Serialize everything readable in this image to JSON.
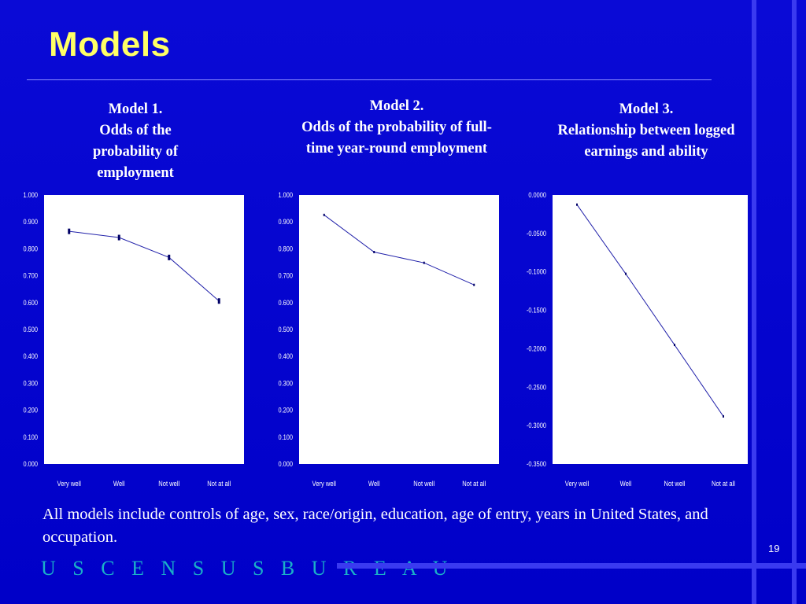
{
  "slide": {
    "title": "Models",
    "note": "All models include controls of age, sex, race/origin, education, age of entry, years in United States, and occupation.",
    "page_number": "19",
    "footer_brand": "U S C E N S U S B U R E A U"
  },
  "colors": {
    "background": "#0000cc",
    "title": "#ffff66",
    "plot_background": "#ffffff",
    "series_line": "#2222aa",
    "brand": "#1ab0c8"
  },
  "captions": [
    "Model 1.\nOdds of the probability of employment",
    "Model 2.\nOdds of the probability of full-time year-round employment",
    "Model 3.\nRelationship between logged earnings and ability"
  ],
  "chart_data": [
    {
      "type": "line",
      "title": "Model 1. Odds of the probability of employment",
      "categories": [
        "Very well",
        "Well",
        "Not well",
        "Not at all"
      ],
      "series": [
        {
          "values": [
            0.865,
            0.842,
            0.768,
            0.606
          ]
        }
      ],
      "ylim": [
        0,
        1
      ],
      "yticks": [
        0,
        0.1,
        0.2,
        0.3,
        0.4,
        0.5,
        0.6,
        0.7,
        0.8,
        0.9,
        1.0
      ],
      "ytick_labels": [
        "0.000",
        "0.100",
        "0.200",
        "0.300",
        "0.400",
        "0.500",
        "0.600",
        "0.700",
        "0.800",
        "0.900",
        "1.000"
      ],
      "xlabel": "",
      "ylabel": "",
      "grid": false,
      "legend": false
    },
    {
      "type": "line",
      "title": "Model 2. Odds of the probability of full-time year-round employment",
      "categories": [
        "Very well",
        "Well",
        "Not well",
        "Not at all"
      ],
      "series": [
        {
          "values": [
            0.926,
            0.788,
            0.748,
            0.666
          ]
        }
      ],
      "ylim": [
        0,
        1
      ],
      "yticks": [
        0,
        0.1,
        0.2,
        0.3,
        0.4,
        0.5,
        0.6,
        0.7,
        0.8,
        0.9,
        1.0
      ],
      "ytick_labels": [
        "0.000",
        "0.100",
        "0.200",
        "0.300",
        "0.400",
        "0.500",
        "0.600",
        "0.700",
        "0.800",
        "0.900",
        "1.000"
      ],
      "xlabel": "",
      "ylabel": "",
      "grid": false,
      "legend": false
    },
    {
      "type": "line",
      "title": "Model 3. Relationship between logged earnings and ability",
      "categories": [
        "Very well",
        "Well",
        "Not well",
        "Not at all"
      ],
      "series": [
        {
          "values": [
            -0.0125,
            -0.1025,
            -0.195,
            -0.288
          ]
        }
      ],
      "ylim": [
        -0.35,
        0
      ],
      "yticks": [
        -0.35,
        -0.3,
        -0.25,
        -0.2,
        -0.15,
        -0.1,
        -0.05,
        0
      ],
      "ytick_labels": [
        "-0.3500",
        "-0.3000",
        "-0.2500",
        "-0.2000",
        "-0.1500",
        "-0.1000",
        "-0.0500",
        "0.0000"
      ],
      "xlabel": "",
      "ylabel": "",
      "grid": false,
      "legend": false
    }
  ]
}
